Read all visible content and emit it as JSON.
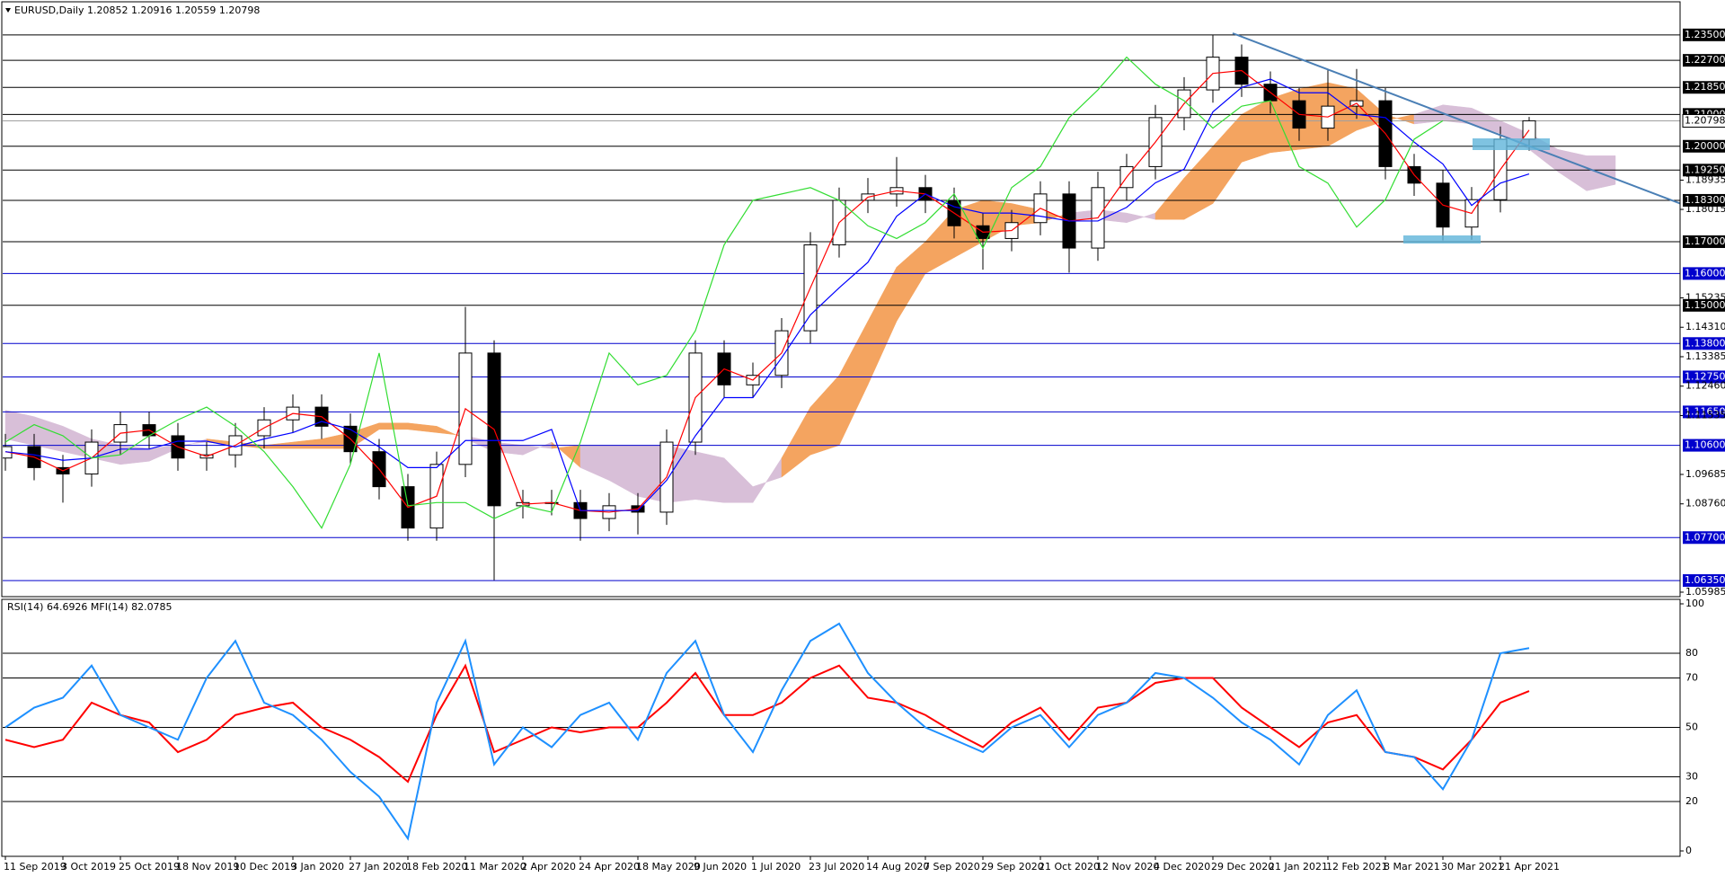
{
  "chart_data": [
    {
      "type": "candlestick",
      "title": "EURUSD,Daily  1.20852 1.20916 1.20559 1.20798",
      "categories": [
        "11 Sep 2019",
        null,
        "3 Oct 2019",
        null,
        "25 Oct 2019",
        null,
        "18 Nov 2019",
        null,
        "10 Dec 2019",
        null,
        "3 Jan 2020",
        null,
        "27 Jan 2020",
        null,
        "18 Feb 2020",
        null,
        "11 Mar 2020",
        null,
        "2 Apr 2020",
        null,
        "24 Apr 2020",
        null,
        "18 May 2020",
        null,
        "9 Jun 2020",
        null,
        "1 Jul 2020",
        null,
        "23 Jul 2020",
        null,
        "14 Aug 2020",
        null,
        "7 Sep 2020",
        null,
        "29 Sep 2020",
        null,
        "21 Oct 2020",
        null,
        "12 Nov 2020",
        null,
        "4 Dec 2020",
        null,
        "29 Dec 2020",
        null,
        "21 Jan 2021",
        null,
        "12 Feb 2021",
        null,
        "8 Mar 2021",
        null,
        "30 Mar 2021",
        null,
        "21 Apr 2021",
        null,
        null,
        null,
        null
      ],
      "open": [
        1.102,
        1.1056,
        1.099,
        1.097,
        1.107,
        1.1125,
        1.109,
        1.102,
        1.103,
        1.109,
        1.114,
        1.118,
        1.112,
        1.104,
        1.093,
        1.08,
        1.1,
        1.135,
        1.087,
        1.088,
        1.088,
        1.083,
        1.087,
        1.085,
        1.107,
        1.135,
        1.125,
        1.128,
        1.142,
        1.169,
        1.183,
        1.185,
        1.187,
        1.183,
        1.175,
        1.171,
        1.176,
        1.185,
        1.168,
        1.187,
        1.1936,
        1.209,
        1.2177,
        1.228,
        1.2195,
        1.2143,
        1.2057,
        1.2126,
        1.2143,
        1.1936,
        1.1884,
        1.1746,
        1.1832,
        1.2022,
        null,
        null,
        null
      ],
      "high": [
        1.1096,
        1.1096,
        1.103,
        1.111,
        1.1165,
        1.1165,
        1.113,
        1.107,
        1.113,
        1.118,
        1.122,
        1.122,
        1.116,
        1.108,
        1.097,
        1.104,
        1.1495,
        1.139,
        1.092,
        1.092,
        1.092,
        1.091,
        1.091,
        1.111,
        1.139,
        1.139,
        1.132,
        1.146,
        1.173,
        1.187,
        1.19,
        1.1966,
        1.191,
        1.187,
        1.179,
        1.18,
        1.189,
        1.189,
        1.192,
        1.1976,
        1.213,
        1.2217,
        1.2349,
        1.232,
        1.2235,
        1.2183,
        1.224,
        1.2243,
        1.2183,
        1.1976,
        1.1924,
        1.1872,
        1.2062,
        1.2092,
        null,
        null,
        null
      ],
      "low": [
        1.098,
        1.095,
        1.088,
        1.093,
        1.103,
        1.105,
        1.098,
        1.098,
        1.099,
        1.105,
        1.11,
        1.108,
        1.1,
        1.089,
        1.076,
        1.076,
        1.096,
        1.0636,
        1.083,
        1.084,
        1.076,
        1.079,
        1.078,
        1.081,
        1.103,
        1.121,
        1.121,
        1.124,
        1.138,
        1.165,
        1.179,
        1.181,
        1.179,
        1.171,
        1.1612,
        1.167,
        1.172,
        1.1603,
        1.164,
        1.183,
        1.1896,
        1.205,
        1.2137,
        1.2155,
        1.2103,
        1.2017,
        1.2017,
        1.2086,
        1.1896,
        1.1844,
        1.1704,
        1.1706,
        1.1792,
        1.1986,
        null,
        null,
        null
      ],
      "close": [
        1.1056,
        1.099,
        1.097,
        1.107,
        1.1125,
        1.109,
        1.102,
        1.103,
        1.109,
        1.114,
        1.118,
        1.112,
        1.104,
        1.093,
        1.08,
        1.1,
        1.135,
        1.087,
        1.088,
        1.088,
        1.083,
        1.087,
        1.085,
        1.107,
        1.135,
        1.125,
        1.128,
        1.142,
        1.169,
        1.183,
        1.185,
        1.187,
        1.183,
        1.175,
        1.171,
        1.176,
        1.185,
        1.168,
        1.187,
        1.1936,
        1.209,
        1.2177,
        1.228,
        1.2195,
        1.2143,
        1.2057,
        1.2126,
        1.2143,
        1.1936,
        1.1884,
        1.1746,
        1.1832,
        1.2022,
        1.208,
        null,
        null,
        null
      ],
      "up_color": "#ffffff",
      "down_color": "#000000",
      "series": [
        {
          "color": "#ff0000",
          "values": [
            1.104,
            1.1023,
            1.098,
            1.102,
            1.1098,
            1.1108,
            1.1055,
            1.1025,
            1.106,
            1.1115,
            1.116,
            1.115,
            1.108,
            1.0985,
            1.0865,
            1.09,
            1.1175,
            1.111,
            1.0875,
            1.088,
            1.0855,
            1.085,
            1.086,
            1.096,
            1.121,
            1.13,
            1.1265,
            1.135,
            1.1555,
            1.176,
            1.184,
            1.186,
            1.185,
            1.179,
            1.173,
            1.1735,
            1.1805,
            1.1765,
            1.1775,
            1.1903,
            1.2013,
            1.2134,
            1.2229,
            1.2238,
            1.2169,
            1.21,
            1.2092,
            1.2135,
            1.204,
            1.191,
            1.1815,
            1.1789,
            1.1927,
            1.2051,
            null,
            null,
            null
          ]
        },
        {
          "color": "#0000ff",
          "values": [
            1.104,
            1.103,
            1.1013,
            1.102,
            1.1048,
            1.1048,
            1.1073,
            1.1073,
            1.1055,
            1.108,
            1.11,
            1.1135,
            1.111,
            1.1055,
            1.099,
            1.099,
            1.1075,
            1.1075,
            1.1075,
            1.111,
            1.0855,
            1.0855,
            1.0855,
            1.095,
            1.109,
            1.121,
            1.121,
            1.1335,
            1.147,
            1.1555,
            1.1635,
            1.178,
            1.185,
            1.181,
            1.179,
            1.179,
            1.178,
            1.1765,
            1.1765,
            1.1808,
            1.1885,
            1.1928,
            1.2108,
            1.2185,
            1.2211,
            1.2168,
            1.2168,
            1.21,
            1.209,
            1.2013,
            1.1944,
            1.1814,
            1.1884,
            1.1913,
            null,
            null,
            null
          ]
        },
        {
          "color": "#33dd33",
          "values": [
            1.107,
            1.1125,
            1.109,
            1.102,
            1.103,
            1.109,
            1.114,
            1.118,
            1.112,
            1.104,
            1.093,
            1.08,
            1.1,
            1.135,
            1.087,
            1.088,
            1.088,
            1.083,
            1.087,
            1.085,
            1.107,
            1.135,
            1.125,
            1.128,
            1.142,
            1.169,
            1.183,
            1.185,
            1.187,
            1.183,
            1.175,
            1.171,
            1.176,
            1.185,
            1.168,
            1.187,
            1.1936,
            1.209,
            1.2177,
            1.228,
            1.2195,
            1.2143,
            1.2057,
            1.2126,
            1.2143,
            1.1936,
            1.1884,
            1.1746,
            1.1832,
            1.2022,
            1.208,
            null,
            null,
            null,
            null,
            null,
            null
          ]
        }
      ],
      "cloud": {
        "up_color": "#f4a460",
        "down_color": "#d8bfd8",
        "span_a": [
          1.108,
          1.106,
          1.104,
          1.102,
          1.1,
          1.101,
          1.105,
          1.108,
          1.107,
          1.106,
          1.107,
          1.108,
          1.11,
          1.113,
          1.113,
          1.112,
          1.108,
          1.104,
          1.103,
          1.107,
          1.099,
          1.095,
          1.09,
          1.088,
          1.089,
          1.088,
          1.088,
          1.102,
          1.118,
          1.128,
          1.145,
          1.162,
          1.17,
          1.18,
          1.183,
          1.182,
          1.18,
          1.177,
          1.177,
          1.176,
          1.179,
          1.19,
          1.2,
          1.21,
          1.215,
          1.218,
          1.22,
          1.218,
          1.21,
          1.207,
          1.208,
          1.207,
          1.204,
          1.199,
          1.192,
          1.186,
          1.188
        ],
        "span_b": [
          1.117,
          1.115,
          1.112,
          1.108,
          1.106,
          1.105,
          1.106,
          1.107,
          1.106,
          1.105,
          1.105,
          1.105,
          1.105,
          1.111,
          1.111,
          1.11,
          1.109,
          1.107,
          1.106,
          1.105,
          1.106,
          1.106,
          1.106,
          1.106,
          1.104,
          1.102,
          1.093,
          1.096,
          1.103,
          1.106,
          1.125,
          1.145,
          1.16,
          1.165,
          1.17,
          1.175,
          1.176,
          1.179,
          1.18,
          1.179,
          1.177,
          1.177,
          1.182,
          1.195,
          1.198,
          1.199,
          1.2,
          1.205,
          1.208,
          1.21,
          1.213,
          1.212,
          1.208,
          1.204,
          1.199,
          1.197,
          1.197
        ]
      },
      "ylim": [
        1.059,
        1.2454
      ],
      "levels": [
        {
          "value": 1.235,
          "label": "1.23500",
          "color": "#000000"
        },
        {
          "value": 1.227,
          "label": "1.22700",
          "color": "#000000"
        },
        {
          "value": 1.2185,
          "label": "1.21850",
          "color": "#000000"
        },
        {
          "value": 1.21,
          "label": "1.21000",
          "color": "#000000"
        },
        {
          "value": 1.2,
          "label": "1.20000",
          "color": "#000000"
        },
        {
          "value": 1.1925,
          "label": "1.19250",
          "color": "#000000"
        },
        {
          "value": 1.183,
          "label": "1.18300",
          "color": "#000000"
        },
        {
          "value": 1.17,
          "label": "1.17000",
          "color": "#000000"
        },
        {
          "value": 1.16,
          "label": "1.16000",
          "color": "#0000cd"
        },
        {
          "value": 1.15,
          "label": "1.15000",
          "color": "#000000"
        },
        {
          "value": 1.138,
          "label": "1.13800",
          "color": "#0000cd"
        },
        {
          "value": 1.1275,
          "label": "1.12750",
          "color": "#0000cd"
        },
        {
          "value": 1.1165,
          "label": "1.11650",
          "color": "#0000cd"
        },
        {
          "value": 1.106,
          "label": "1.10600",
          "color": "#0000cd"
        },
        {
          "value": 1.077,
          "label": "1.07700",
          "color": "#0000cd"
        },
        {
          "value": 1.0635,
          "label": "1.06350",
          "color": "#0000cd"
        }
      ],
      "current_price": {
        "value": 1.20798,
        "label": "1.20798"
      },
      "yticks": [
        1.18935,
        1.18015,
        1.15235,
        {
          "value": 1.1431,
          "label": "1.14310"
        },
        1.13385,
        {
          "value": 1.1246,
          "label": "1.12460"
        },
        1.11535,
        1.09685,
        {
          "value": 1.0876,
          "label": "1.08760"
        },
        1.05985
      ]
    },
    {
      "type": "line",
      "title": "RSI(14) 64.6926  MFI(14) 82.0785",
      "ylim": [
        0,
        100
      ],
      "yticks": [
        0,
        20,
        30,
        50,
        70,
        80,
        100
      ],
      "series": [
        {
          "color": "#ff0000",
          "values": [
            45,
            42,
            45,
            60,
            55,
            52,
            40,
            45,
            55,
            58,
            60,
            50,
            45,
            38,
            28,
            55,
            75,
            40,
            45,
            50,
            48,
            50,
            50,
            60,
            72,
            55,
            55,
            60,
            70,
            75,
            62,
            60,
            55,
            48,
            42,
            52,
            58,
            45,
            58,
            60,
            68,
            70,
            70,
            58,
            50,
            42,
            52,
            55,
            40,
            38,
            33,
            45,
            60,
            64.69,
            null,
            null,
            null
          ]
        },
        {
          "color": "#1e90ff",
          "values": [
            50,
            58,
            62,
            75,
            55,
            50,
            45,
            70,
            85,
            60,
            55,
            45,
            32,
            22,
            5,
            60,
            85,
            35,
            50,
            42,
            55,
            60,
            45,
            72,
            85,
            55,
            40,
            65,
            85,
            92,
            72,
            60,
            50,
            45,
            40,
            50,
            55,
            42,
            55,
            60,
            72,
            70,
            62,
            52,
            45,
            35,
            55,
            65,
            40,
            38,
            25,
            45,
            80,
            82.08,
            null,
            null,
            null
          ]
        }
      ]
    }
  ]
}
